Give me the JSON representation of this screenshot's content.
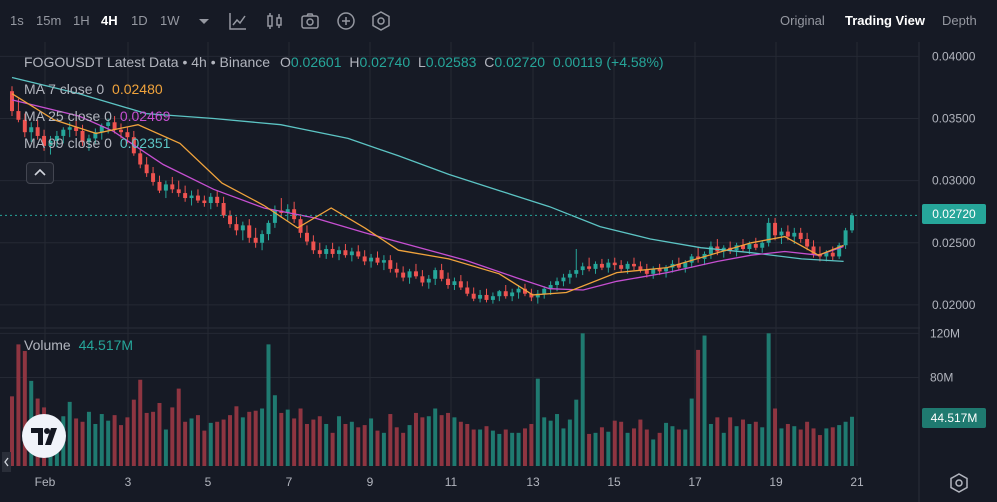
{
  "toolbar": {
    "timeframes": [
      "1s",
      "15m",
      "1H",
      "4H",
      "1D",
      "1W"
    ],
    "active_timeframe": "4H",
    "views": [
      "Original",
      "Trading View",
      "Depth"
    ],
    "active_view": "Trading View"
  },
  "legend": {
    "symbol": "FOGOUSDT Latest Data • 4h • Binance",
    "o_label": "O",
    "o_value": "0.02601",
    "h_label": "H",
    "h_value": "0.02740",
    "l_label": "L",
    "l_value": "0.02583",
    "c_label": "C",
    "c_value": "0.02720",
    "change": "0.00119 (+4.58%)",
    "ma7_label": "MA 7 close 0",
    "ma7_value": "0.02480",
    "ma25_label": "MA 25 close 0",
    "ma25_value": "0.02469",
    "ma99_label": "MA 99 close 0",
    "ma99_value": "0.02351",
    "volume_label": "Volume",
    "volume_value": "44.517M"
  },
  "colors": {
    "up": "#26a69a",
    "down": "#ef5350",
    "ma7": "#f0a33c",
    "ma25": "#c64fd1",
    "ma99": "#5cc4c4",
    "volume_up": "#1f7a70",
    "volume_down": "#8e3541"
  },
  "chart_data": {
    "type": "candlestick",
    "price_axis": {
      "ticks": [
        "0.04000",
        "0.03500",
        "0.03000",
        "0.02500",
        "0.02000"
      ],
      "range": [
        0.0183,
        0.041
      ]
    },
    "volume_axis": {
      "ticks": [
        "120M",
        "80M"
      ],
      "range": [
        0,
        123
      ]
    },
    "x_ticks": [
      "Feb",
      "3",
      "5",
      "7",
      "9",
      "11",
      "13",
      "15",
      "17",
      "19",
      "21"
    ],
    "last_price": "0.02720",
    "last_volume": "44.517M",
    "candles": [
      [
        0.0372,
        0.0376,
        0.0352,
        0.0356,
        63
      ],
      [
        0.0356,
        0.0366,
        0.0347,
        0.0349,
        110
      ],
      [
        0.0349,
        0.0354,
        0.0335,
        0.0339,
        104
      ],
      [
        0.0339,
        0.0347,
        0.0331,
        0.0343,
        77
      ],
      [
        0.0343,
        0.0349,
        0.0333,
        0.0336,
        61
      ],
      [
        0.0336,
        0.0341,
        0.0324,
        0.0328,
        53
      ],
      [
        0.0328,
        0.0336,
        0.0321,
        0.0332,
        37
      ],
      [
        0.0332,
        0.034,
        0.0327,
        0.0336,
        41
      ],
      [
        0.0336,
        0.0343,
        0.033,
        0.0341,
        45
      ],
      [
        0.0341,
        0.0347,
        0.0335,
        0.0343,
        58
      ],
      [
        0.0343,
        0.035,
        0.0336,
        0.034,
        43
      ],
      [
        0.034,
        0.0345,
        0.0328,
        0.0331,
        40
      ],
      [
        0.0331,
        0.0337,
        0.0324,
        0.0334,
        49
      ],
      [
        0.0334,
        0.0342,
        0.033,
        0.0339,
        38
      ],
      [
        0.0339,
        0.0346,
        0.0333,
        0.0344,
        47
      ],
      [
        0.0344,
        0.035,
        0.0338,
        0.0347,
        41
      ],
      [
        0.0347,
        0.0352,
        0.0338,
        0.0341,
        46
      ],
      [
        0.0341,
        0.0346,
        0.0334,
        0.0339,
        37
      ],
      [
        0.0339,
        0.0343,
        0.033,
        0.0335,
        44
      ],
      [
        0.0335,
        0.034,
        0.032,
        0.0322,
        60
      ],
      [
        0.0322,
        0.0326,
        0.031,
        0.0313,
        78
      ],
      [
        0.0313,
        0.0319,
        0.0303,
        0.0306,
        48
      ],
      [
        0.0306,
        0.0311,
        0.0296,
        0.0299,
        49
      ],
      [
        0.0299,
        0.0304,
        0.029,
        0.0292,
        57
      ],
      [
        0.0292,
        0.03,
        0.0286,
        0.0297,
        33
      ],
      [
        0.0297,
        0.0303,
        0.029,
        0.0293,
        53
      ],
      [
        0.0293,
        0.03,
        0.0287,
        0.029,
        70
      ],
      [
        0.029,
        0.0296,
        0.0283,
        0.0286,
        40
      ],
      [
        0.0286,
        0.0292,
        0.028,
        0.0288,
        43
      ],
      [
        0.0288,
        0.0293,
        0.0282,
        0.0284,
        46
      ],
      [
        0.0284,
        0.0288,
        0.0279,
        0.0282,
        32
      ],
      [
        0.0282,
        0.029,
        0.0277,
        0.0287,
        39
      ],
      [
        0.0287,
        0.0292,
        0.0279,
        0.0282,
        40
      ],
      [
        0.0282,
        0.0287,
        0.027,
        0.0272,
        42
      ],
      [
        0.0272,
        0.0276,
        0.0262,
        0.0265,
        46
      ],
      [
        0.0265,
        0.0271,
        0.0256,
        0.026,
        54
      ],
      [
        0.026,
        0.0267,
        0.0252,
        0.0264,
        44
      ],
      [
        0.0264,
        0.0269,
        0.025,
        0.0254,
        49
      ],
      [
        0.0254,
        0.0262,
        0.0246,
        0.025,
        50
      ],
      [
        0.025,
        0.026,
        0.0244,
        0.0257,
        52
      ],
      [
        0.0257,
        0.0268,
        0.0252,
        0.0266,
        110
      ],
      [
        0.0266,
        0.028,
        0.0262,
        0.0276,
        64
      ],
      [
        0.0276,
        0.0286,
        0.027,
        0.0274,
        48
      ],
      [
        0.0274,
        0.0281,
        0.0268,
        0.0277,
        51
      ],
      [
        0.0277,
        0.0283,
        0.0266,
        0.0269,
        43
      ],
      [
        0.0269,
        0.0273,
        0.0254,
        0.0258,
        52
      ],
      [
        0.0258,
        0.0264,
        0.0248,
        0.0251,
        38
      ],
      [
        0.0251,
        0.0256,
        0.0241,
        0.0244,
        42
      ],
      [
        0.0244,
        0.025,
        0.0238,
        0.0241,
        45
      ],
      [
        0.0241,
        0.0248,
        0.0237,
        0.0245,
        38
      ],
      [
        0.0245,
        0.025,
        0.0238,
        0.0241,
        30
      ],
      [
        0.0241,
        0.0247,
        0.0236,
        0.0244,
        45
      ],
      [
        0.0244,
        0.0249,
        0.0238,
        0.024,
        38
      ],
      [
        0.024,
        0.0246,
        0.0235,
        0.0243,
        40
      ],
      [
        0.0243,
        0.0248,
        0.0237,
        0.0239,
        35
      ],
      [
        0.0239,
        0.0244,
        0.0232,
        0.0235,
        37
      ],
      [
        0.0235,
        0.0241,
        0.023,
        0.0238,
        43
      ],
      [
        0.0238,
        0.0243,
        0.0232,
        0.0234,
        32
      ],
      [
        0.0234,
        0.024,
        0.0228,
        0.0236,
        30
      ],
      [
        0.0236,
        0.024,
        0.0226,
        0.0229,
        47
      ],
      [
        0.0229,
        0.0234,
        0.0222,
        0.0226,
        35
      ],
      [
        0.0226,
        0.0231,
        0.0219,
        0.0222,
        30
      ],
      [
        0.0222,
        0.0229,
        0.0217,
        0.0227,
        37
      ],
      [
        0.0227,
        0.0233,
        0.0221,
        0.0223,
        48
      ],
      [
        0.0223,
        0.0228,
        0.0215,
        0.0218,
        44
      ],
      [
        0.0218,
        0.0224,
        0.0213,
        0.0221,
        45
      ],
      [
        0.0221,
        0.023,
        0.0216,
        0.0228,
        52
      ],
      [
        0.0228,
        0.0233,
        0.0219,
        0.0221,
        46
      ],
      [
        0.0221,
        0.0226,
        0.0213,
        0.0216,
        48
      ],
      [
        0.0216,
        0.0222,
        0.0212,
        0.0219,
        44
      ],
      [
        0.0219,
        0.0224,
        0.0212,
        0.0214,
        40
      ],
      [
        0.0214,
        0.0219,
        0.0207,
        0.0209,
        38
      ],
      [
        0.0209,
        0.0214,
        0.0203,
        0.0205,
        33
      ],
      [
        0.0205,
        0.0212,
        0.0202,
        0.0208,
        33
      ],
      [
        0.0208,
        0.0213,
        0.0202,
        0.0204,
        36
      ],
      [
        0.0204,
        0.021,
        0.0201,
        0.0207,
        32
      ],
      [
        0.0207,
        0.0212,
        0.0203,
        0.0211,
        29
      ],
      [
        0.0211,
        0.0216,
        0.0205,
        0.0207,
        33
      ],
      [
        0.0207,
        0.0213,
        0.0203,
        0.021,
        30
      ],
      [
        0.021,
        0.0216,
        0.0205,
        0.0213,
        30
      ],
      [
        0.0213,
        0.0217,
        0.0207,
        0.0209,
        34
      ],
      [
        0.0209,
        0.0213,
        0.0203,
        0.0206,
        38
      ],
      [
        0.0206,
        0.0212,
        0.0201,
        0.0209,
        79
      ],
      [
        0.0209,
        0.0215,
        0.0205,
        0.0213,
        44
      ],
      [
        0.0213,
        0.0219,
        0.0208,
        0.0216,
        41
      ],
      [
        0.0216,
        0.0222,
        0.0211,
        0.0219,
        47
      ],
      [
        0.0219,
        0.0225,
        0.0215,
        0.0222,
        34
      ],
      [
        0.0222,
        0.0228,
        0.0217,
        0.0225,
        42
      ],
      [
        0.0225,
        0.0245,
        0.0222,
        0.0228,
        60
      ],
      [
        0.0228,
        0.0234,
        0.0224,
        0.0231,
        120
      ],
      [
        0.0231,
        0.0238,
        0.0227,
        0.0229,
        29
      ],
      [
        0.0229,
        0.0235,
        0.0225,
        0.0233,
        30
      ],
      [
        0.0233,
        0.0237,
        0.0228,
        0.023,
        35
      ],
      [
        0.023,
        0.0237,
        0.0226,
        0.0234,
        31
      ],
      [
        0.0234,
        0.0238,
        0.0228,
        0.0232,
        41
      ],
      [
        0.0232,
        0.0236,
        0.0226,
        0.0229,
        40
      ],
      [
        0.0229,
        0.0235,
        0.0225,
        0.0233,
        30
      ],
      [
        0.0233,
        0.0238,
        0.0228,
        0.0231,
        34
      ],
      [
        0.0231,
        0.0235,
        0.0226,
        0.0228,
        42
      ],
      [
        0.0228,
        0.0233,
        0.0222,
        0.0225,
        33
      ],
      [
        0.0225,
        0.0231,
        0.0221,
        0.0229,
        24
      ],
      [
        0.0229,
        0.0233,
        0.0224,
        0.0227,
        30
      ],
      [
        0.0227,
        0.0232,
        0.0222,
        0.023,
        39
      ],
      [
        0.023,
        0.0236,
        0.0226,
        0.0233,
        36
      ],
      [
        0.0233,
        0.0238,
        0.0228,
        0.023,
        33
      ],
      [
        0.023,
        0.0236,
        0.0226,
        0.0234,
        33
      ],
      [
        0.0234,
        0.0241,
        0.023,
        0.0239,
        61
      ],
      [
        0.0239,
        0.0246,
        0.0234,
        0.0237,
        105
      ],
      [
        0.0237,
        0.0243,
        0.0232,
        0.0241,
        118
      ],
      [
        0.0241,
        0.0251,
        0.0237,
        0.0247,
        38
      ],
      [
        0.0247,
        0.0253,
        0.024,
        0.0243,
        44
      ],
      [
        0.0243,
        0.0248,
        0.0238,
        0.0246,
        30
      ],
      [
        0.0246,
        0.0251,
        0.0241,
        0.0244,
        44
      ],
      [
        0.0244,
        0.025,
        0.0239,
        0.0248,
        36
      ],
      [
        0.0248,
        0.0253,
        0.0243,
        0.0245,
        42
      ],
      [
        0.0245,
        0.0251,
        0.0241,
        0.0249,
        38
      ],
      [
        0.0249,
        0.0254,
        0.0244,
        0.0246,
        40
      ],
      [
        0.0246,
        0.0252,
        0.0242,
        0.025,
        35
      ],
      [
        0.025,
        0.027,
        0.0247,
        0.0266,
        120
      ],
      [
        0.0266,
        0.027,
        0.0252,
        0.0256,
        52
      ],
      [
        0.0256,
        0.0262,
        0.0249,
        0.0259,
        34
      ],
      [
        0.0259,
        0.0264,
        0.0252,
        0.0255,
        38
      ],
      [
        0.0255,
        0.0262,
        0.0249,
        0.0258,
        36
      ],
      [
        0.0258,
        0.0262,
        0.025,
        0.0253,
        33
      ],
      [
        0.0253,
        0.0258,
        0.0244,
        0.0247,
        40
      ],
      [
        0.0247,
        0.0252,
        0.0238,
        0.0241,
        34
      ],
      [
        0.0241,
        0.0247,
        0.0235,
        0.0239,
        28
      ],
      [
        0.0239,
        0.0244,
        0.0235,
        0.0242,
        34
      ],
      [
        0.0242,
        0.0247,
        0.0236,
        0.0239,
        35
      ],
      [
        0.0239,
        0.025,
        0.0237,
        0.0248,
        37
      ],
      [
        0.0248,
        0.0262,
        0.0245,
        0.026,
        40
      ],
      [
        0.026,
        0.0274,
        0.0258,
        0.0272,
        44.517
      ]
    ],
    "ma7": [
      [
        0,
        0.037
      ],
      [
        0.05,
        0.0349
      ],
      [
        0.1,
        0.0338
      ],
      [
        0.15,
        0.0345
      ],
      [
        0.2,
        0.033
      ],
      [
        0.25,
        0.0298
      ],
      [
        0.3,
        0.028
      ],
      [
        0.34,
        0.0262
      ],
      [
        0.38,
        0.0278
      ],
      [
        0.42,
        0.0262
      ],
      [
        0.46,
        0.0244
      ],
      [
        0.52,
        0.0237
      ],
      [
        0.58,
        0.0225
      ],
      [
        0.62,
        0.0208
      ],
      [
        0.66,
        0.021
      ],
      [
        0.72,
        0.0226
      ],
      [
        0.78,
        0.023
      ],
      [
        0.84,
        0.0242
      ],
      [
        0.88,
        0.025
      ],
      [
        0.92,
        0.0255
      ],
      [
        0.96,
        0.024
      ],
      [
        0.99,
        0.0248
      ]
    ],
    "ma25": [
      [
        0,
        0.0365
      ],
      [
        0.08,
        0.0352
      ],
      [
        0.12,
        0.034
      ],
      [
        0.18,
        0.0313
      ],
      [
        0.24,
        0.0293
      ],
      [
        0.3,
        0.0278
      ],
      [
        0.36,
        0.027
      ],
      [
        0.42,
        0.0258
      ],
      [
        0.48,
        0.0247
      ],
      [
        0.54,
        0.0236
      ],
      [
        0.6,
        0.0222
      ],
      [
        0.64,
        0.0213
      ],
      [
        0.68,
        0.0212
      ],
      [
        0.72,
        0.0219
      ],
      [
        0.78,
        0.0226
      ],
      [
        0.84,
        0.0235
      ],
      [
        0.88,
        0.024
      ],
      [
        0.92,
        0.0243
      ],
      [
        0.96,
        0.024
      ],
      [
        0.99,
        0.0247
      ]
    ],
    "ma99": [
      [
        0,
        0.0383
      ],
      [
        0.08,
        0.037
      ],
      [
        0.16,
        0.0354
      ],
      [
        0.24,
        0.035
      ],
      [
        0.32,
        0.0345
      ],
      [
        0.4,
        0.0334
      ],
      [
        0.46,
        0.032
      ],
      [
        0.52,
        0.0305
      ],
      [
        0.58,
        0.0292
      ],
      [
        0.64,
        0.0279
      ],
      [
        0.7,
        0.0263
      ],
      [
        0.76,
        0.0253
      ],
      [
        0.82,
        0.0246
      ],
      [
        0.88,
        0.0242
      ],
      [
        0.94,
        0.0237
      ],
      [
        0.99,
        0.0235
      ]
    ]
  }
}
